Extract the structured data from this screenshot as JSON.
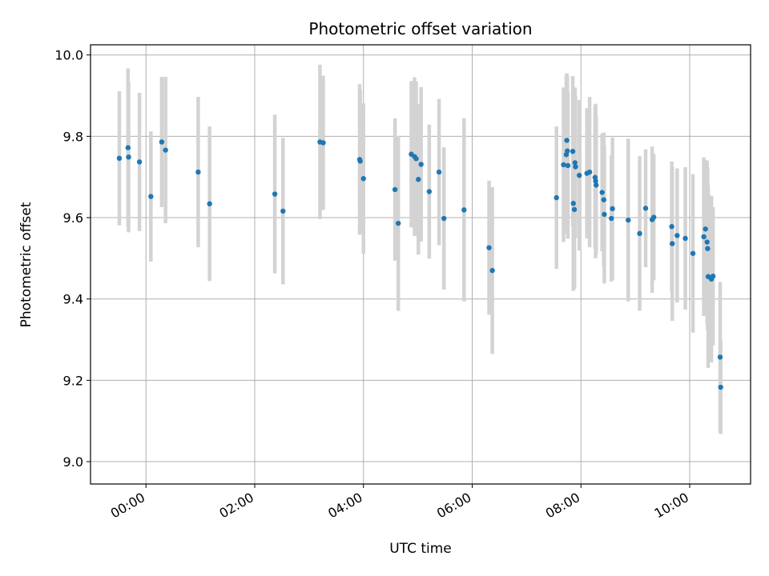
{
  "chart_data": {
    "type": "scatter",
    "title": "Photometric offset variation",
    "xlabel": "UTC time",
    "ylabel": "Photometric offset",
    "x_unit": "hours",
    "x_tick_values": [
      0,
      2,
      4,
      6,
      8,
      10
    ],
    "x_tick_labels": [
      "00:00",
      "02:00",
      "04:00",
      "06:00",
      "08:00",
      "10:00"
    ],
    "xlim": [
      -1.02,
      11.12
    ],
    "y_ticks": [
      9.0,
      9.2,
      9.4,
      9.6,
      9.8,
      10.0
    ],
    "y_tick_labels": [
      "9.0",
      "9.2",
      "9.4",
      "9.6",
      "9.8",
      "10.0"
    ],
    "ylim": [
      8.945,
      10.025
    ],
    "grid": true,
    "marker_color": "#1f77b4",
    "errorbar_color": "#d3d3d3",
    "series": [
      {
        "x": [
          -0.49,
          -0.33,
          -0.32,
          -0.12,
          0.09,
          0.29,
          0.36,
          0.96,
          1.17,
          2.37,
          2.52,
          3.2,
          3.26,
          3.93,
          3.94,
          4.0,
          4.58,
          4.64,
          4.88,
          4.94,
          4.97,
          5.01,
          5.06,
          5.21,
          5.39,
          5.48,
          5.85,
          6.31,
          6.37,
          7.55,
          7.68,
          7.73,
          7.74,
          7.75,
          7.76,
          7.85,
          7.86,
          7.88,
          7.89,
          7.9,
          7.97,
          8.11,
          8.16,
          8.26,
          8.27,
          8.28,
          8.39,
          8.42,
          8.43,
          8.56,
          8.58,
          8.87,
          9.08,
          9.19,
          9.31,
          9.34,
          9.67,
          9.68,
          9.77,
          9.92,
          10.06,
          10.26,
          10.29,
          10.32,
          10.33,
          10.34,
          10.38,
          10.4,
          10.43,
          10.56,
          10.57
        ],
        "y": [
          9.746,
          9.772,
          9.749,
          9.737,
          9.652,
          9.786,
          9.766,
          9.712,
          9.634,
          9.658,
          9.616,
          9.786,
          9.784,
          9.743,
          9.739,
          9.696,
          9.669,
          9.586,
          9.756,
          9.75,
          9.745,
          9.694,
          9.731,
          9.664,
          9.712,
          9.598,
          9.619,
          9.526,
          9.47,
          9.649,
          9.73,
          9.755,
          9.79,
          9.764,
          9.728,
          9.763,
          9.635,
          9.62,
          9.735,
          9.725,
          9.704,
          9.709,
          9.712,
          9.699,
          9.69,
          9.68,
          9.662,
          9.644,
          9.608,
          9.598,
          9.622,
          9.594,
          9.561,
          9.623,
          9.595,
          9.601,
          9.578,
          9.536,
          9.556,
          9.549,
          9.512,
          9.553,
          9.572,
          9.54,
          9.524,
          9.455,
          9.453,
          9.449,
          9.456,
          9.257,
          9.183
        ],
        "yerr": [
          0.165,
          0.195,
          0.185,
          0.17,
          0.16,
          0.16,
          0.18,
          0.185,
          0.19,
          0.195,
          0.18,
          0.19,
          0.165,
          0.185,
          0.175,
          0.185,
          0.175,
          0.215,
          0.18,
          0.195,
          0.19,
          0.185,
          0.19,
          0.165,
          0.18,
          0.175,
          0.225,
          0.165,
          0.205,
          0.175,
          0.19,
          0.195,
          0.165,
          0.185,
          0.18,
          0.185,
          0.215,
          0.195,
          0.185,
          0.175,
          0.185,
          0.16,
          0.185,
          0.175,
          0.19,
          0.17,
          0.145,
          0.165,
          0.17,
          0.155,
          0.175,
          0.2,
          0.19,
          0.145,
          0.18,
          0.155,
          0.16,
          0.19,
          0.165,
          0.175,
          0.195,
          0.195,
          0.17,
          0.2,
          0.2,
          0.225,
          0.2,
          0.205,
          0.17,
          0.185,
          0.115
        ]
      }
    ]
  }
}
